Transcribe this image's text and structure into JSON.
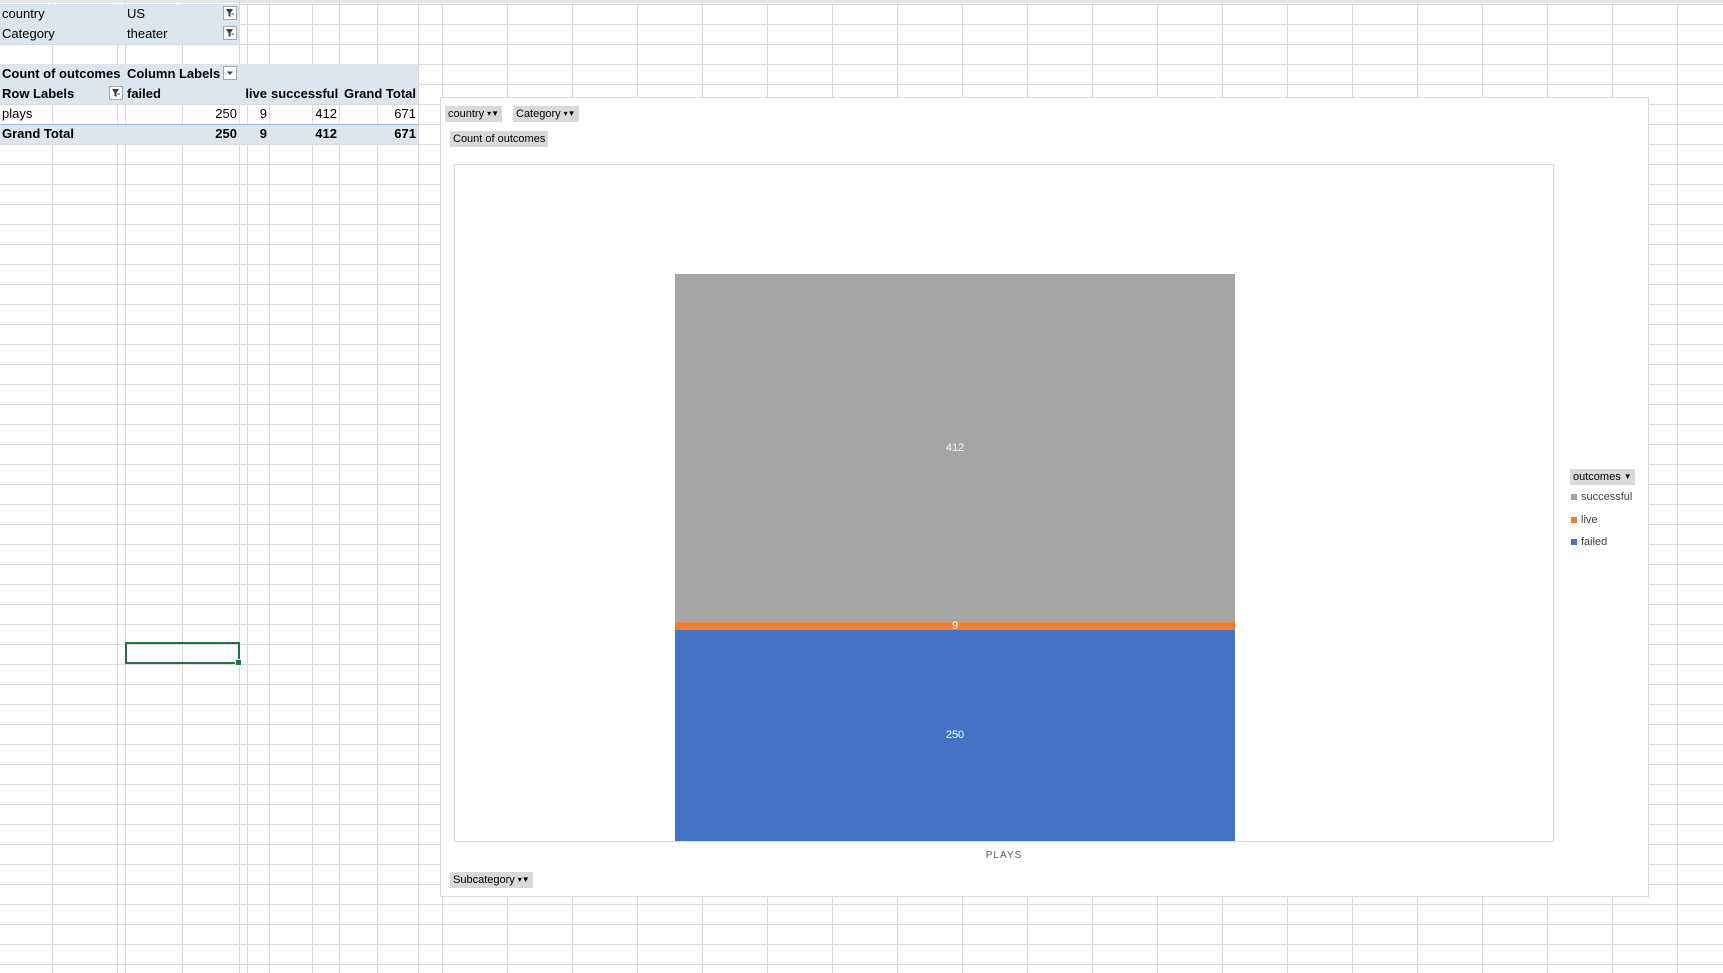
{
  "report_filters": [
    {
      "field": "country",
      "value": "US"
    },
    {
      "field": "Category",
      "value": "theater"
    }
  ],
  "pivot": {
    "value_label": "Count of outcomes",
    "column_labels": "Column Labels",
    "row_labels": "Row Labels",
    "columns": [
      "failed",
      "live",
      "successful",
      "Grand Total"
    ],
    "rows": [
      {
        "label": "plays",
        "values": [
          "250",
          "9",
          "412",
          "671"
        ]
      }
    ],
    "grand_total": {
      "label": "Grand Total",
      "values": [
        "250",
        "9",
        "412",
        "671"
      ]
    }
  },
  "chart": {
    "filter_buttons": [
      "country",
      "Category"
    ],
    "value_button": "Count of outcomes",
    "axis_button": "Subcategory",
    "legend_button": "outcomes",
    "category_label": "PLAYS"
  },
  "chart_data": {
    "type": "bar",
    "stacked": true,
    "categories": [
      "plays"
    ],
    "series": [
      {
        "name": "failed",
        "values": [
          250
        ],
        "color": "#4472c4"
      },
      {
        "name": "live",
        "values": [
          9
        ],
        "color": "#ed7d31"
      },
      {
        "name": "successful",
        "values": [
          412
        ],
        "color": "#a5a5a5"
      }
    ],
    "legend": [
      "successful",
      "live",
      "failed"
    ],
    "legend_position": "right",
    "ylim": [
      0,
      800
    ],
    "grid": false,
    "data_labels": true
  }
}
